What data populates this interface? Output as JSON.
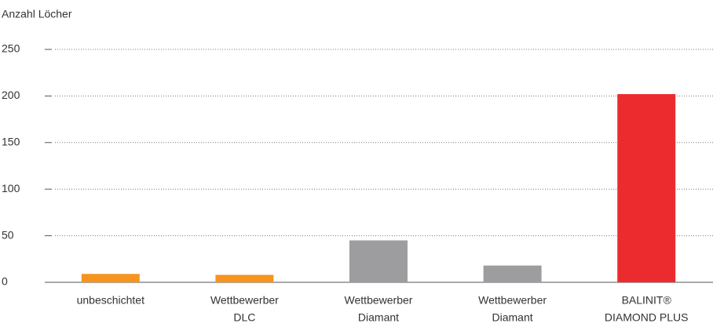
{
  "chart_data": {
    "type": "bar",
    "y_label": "Anzahl Löcher",
    "categories": [
      [
        "unbeschichtet"
      ],
      [
        "Wettbewerber",
        "DLC"
      ],
      [
        "Wettbewerber",
        "Diamant"
      ],
      [
        "Wettbewerber",
        "Diamant"
      ],
      [
        "BALINIT®",
        "DIAMOND PLUS"
      ]
    ],
    "values": [
      9,
      8,
      45,
      18,
      202
    ],
    "colors": [
      "#f7941d",
      "#f7941d",
      "#9d9d9f",
      "#9d9d9f",
      "#ec2b2f"
    ],
    "ylim": [
      0,
      250
    ],
    "yticks": [
      0,
      50,
      100,
      150,
      200,
      250
    ],
    "grid": true
  }
}
